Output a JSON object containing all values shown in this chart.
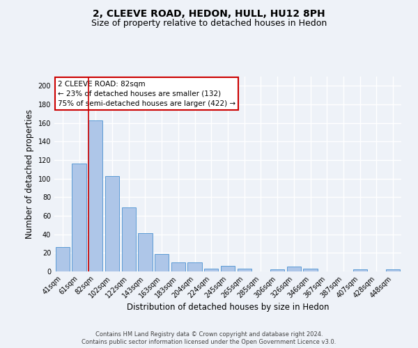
{
  "title": "2, CLEEVE ROAD, HEDON, HULL, HU12 8PH",
  "subtitle": "Size of property relative to detached houses in Hedon",
  "xlabel": "Distribution of detached houses by size in Hedon",
  "ylabel": "Number of detached properties",
  "categories": [
    "41sqm",
    "61sqm",
    "82sqm",
    "102sqm",
    "122sqm",
    "143sqm",
    "163sqm",
    "183sqm",
    "204sqm",
    "224sqm",
    "245sqm",
    "265sqm",
    "285sqm",
    "306sqm",
    "326sqm",
    "346sqm",
    "367sqm",
    "387sqm",
    "407sqm",
    "428sqm",
    "448sqm"
  ],
  "values": [
    26,
    116,
    163,
    103,
    69,
    41,
    19,
    10,
    10,
    3,
    6,
    3,
    0,
    2,
    5,
    3,
    0,
    0,
    2,
    0,
    2
  ],
  "bar_color": "#aec6e8",
  "bar_edge_color": "#5b9bd5",
  "red_line_index": 2,
  "ylim": [
    0,
    210
  ],
  "yticks": [
    0,
    20,
    40,
    60,
    80,
    100,
    120,
    140,
    160,
    180,
    200
  ],
  "annotation_text": "2 CLEEVE ROAD: 82sqm\n← 23% of detached houses are smaller (132)\n75% of semi-detached houses are larger (422) →",
  "annotation_box_color": "#ffffff",
  "annotation_box_edge": "#cc0000",
  "footer1": "Contains HM Land Registry data © Crown copyright and database right 2024.",
  "footer2": "Contains public sector information licensed under the Open Government Licence v3.0.",
  "background_color": "#eef2f8",
  "grid_color": "#ffffff",
  "title_fontsize": 10,
  "subtitle_fontsize": 9,
  "axis_label_fontsize": 8.5,
  "tick_fontsize": 7,
  "annotation_fontsize": 7.5,
  "footer_fontsize": 6
}
